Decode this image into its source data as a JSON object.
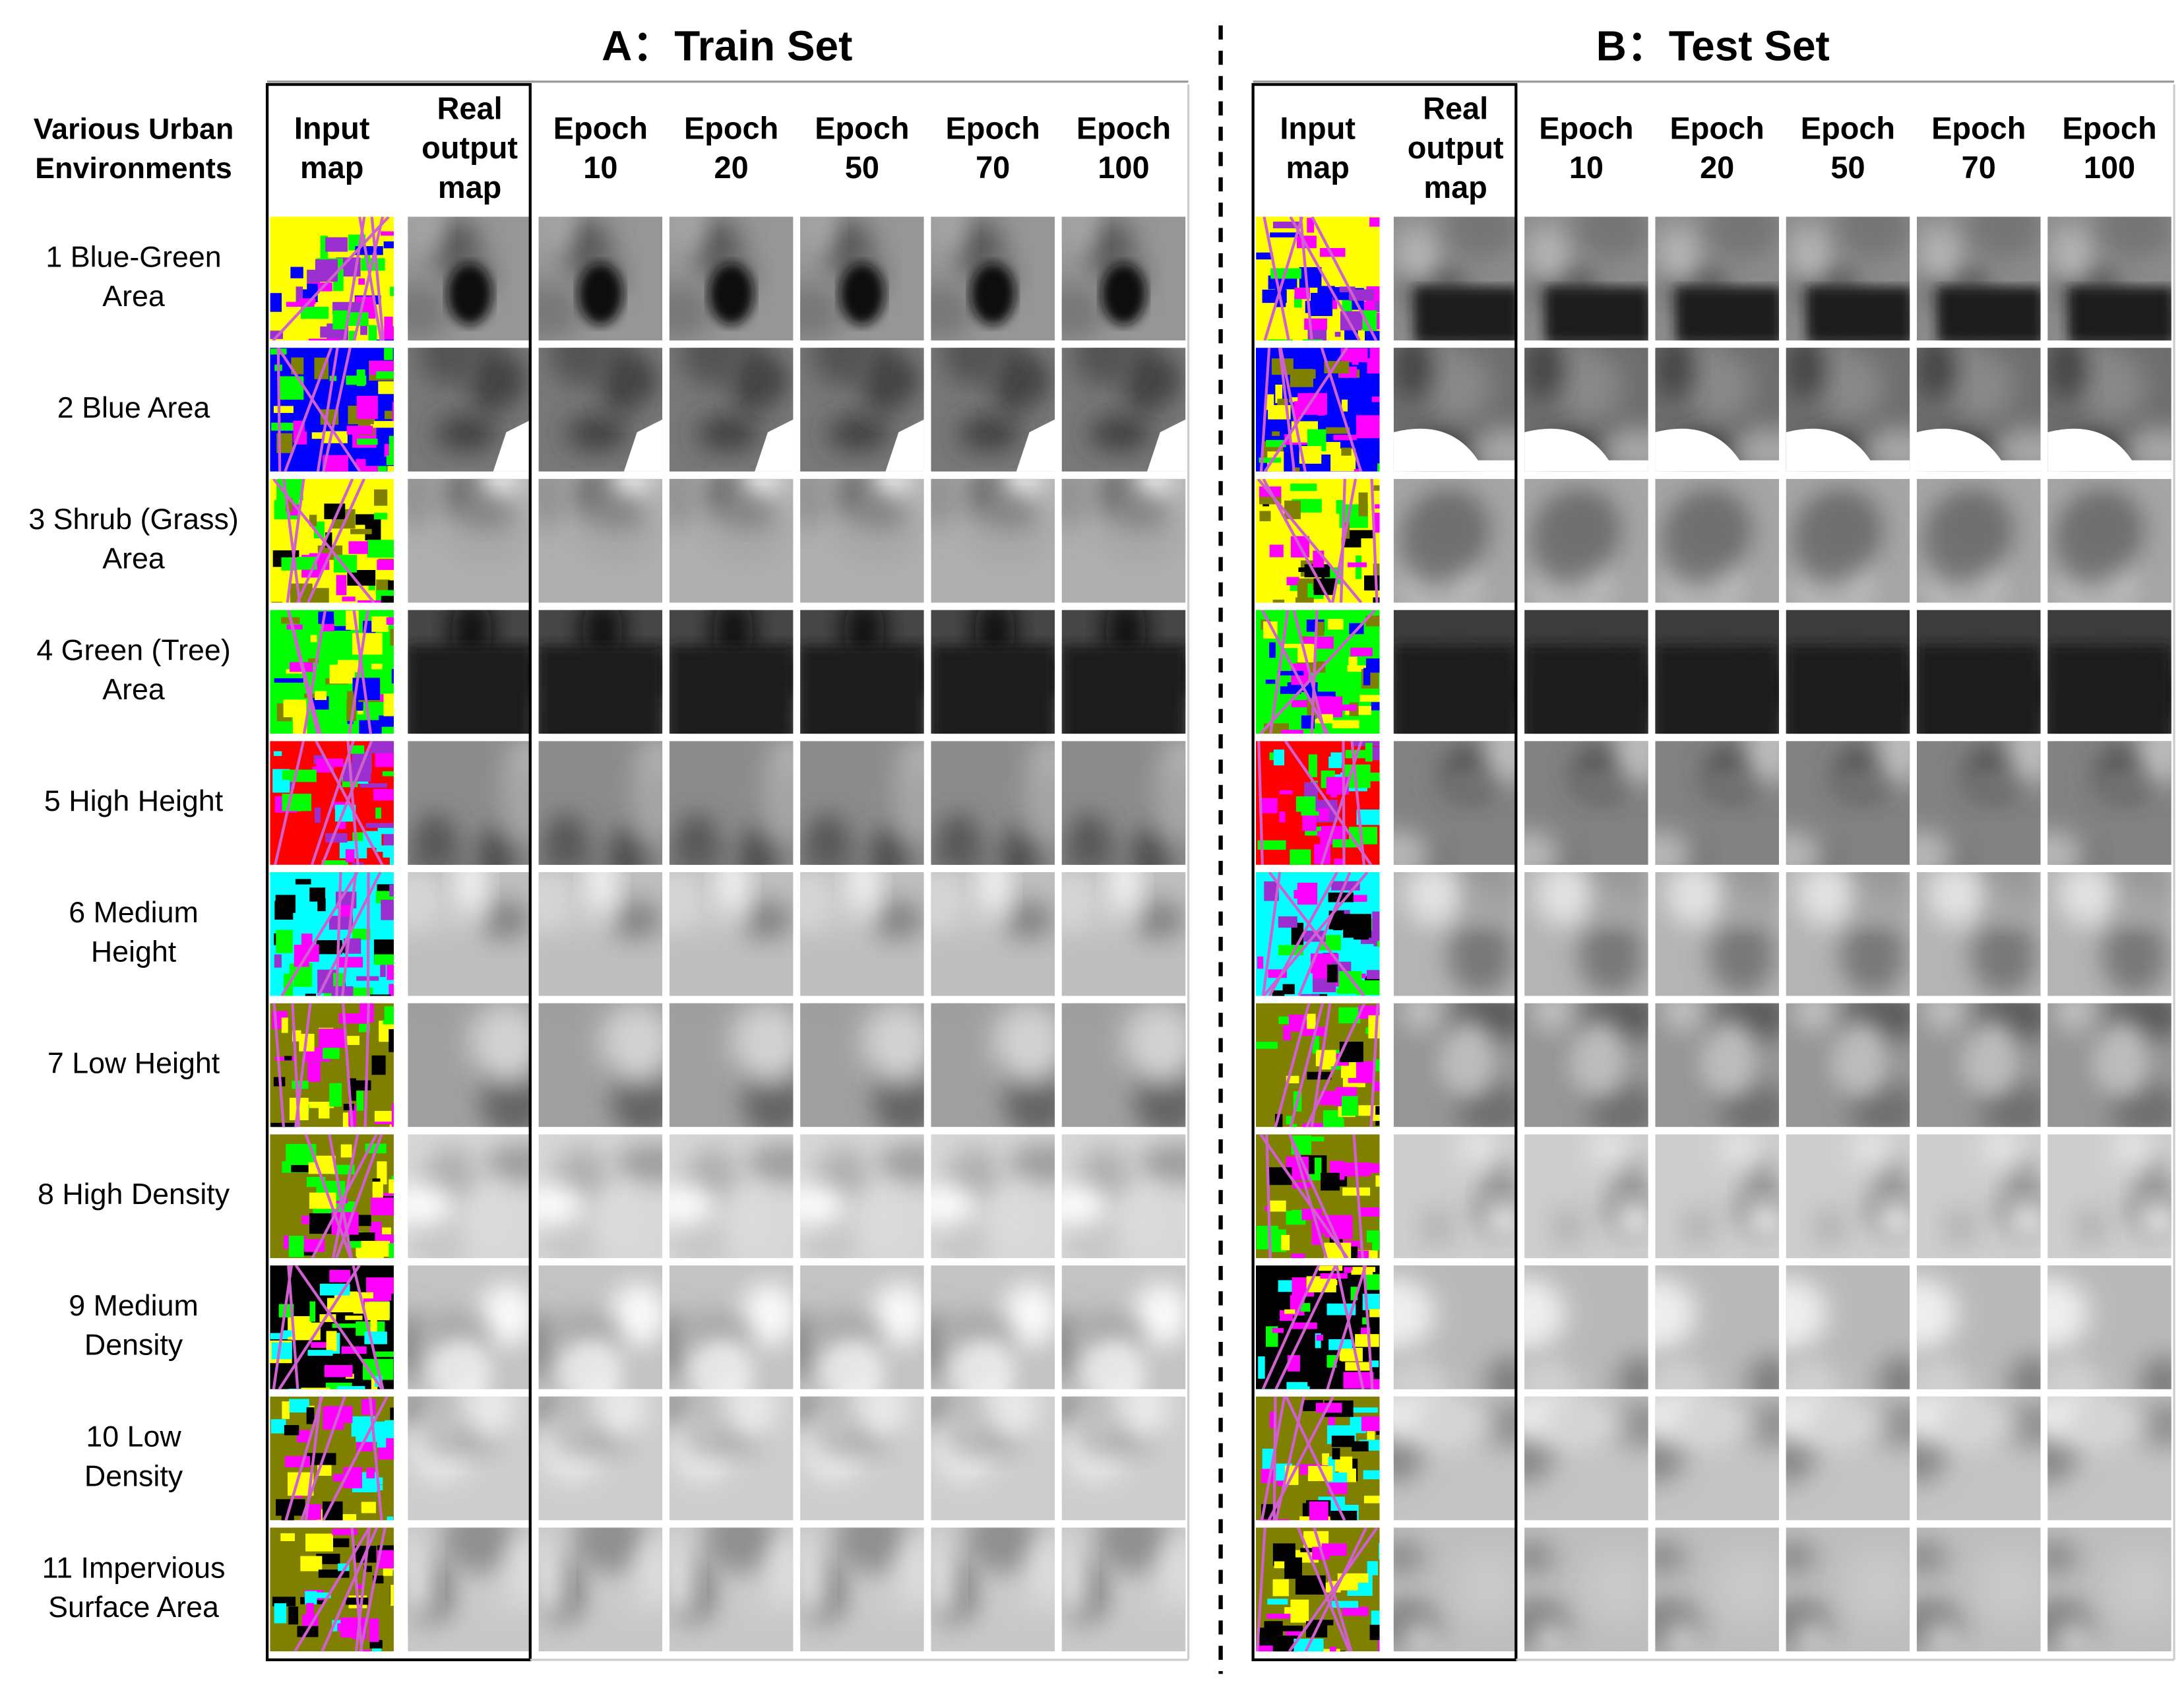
{
  "panels": [
    {
      "title": "A：Train Set",
      "columns": [
        [
          "Input",
          "map"
        ],
        [
          "Real",
          "output",
          "map"
        ],
        [
          "Epoch",
          "10"
        ],
        [
          "Epoch",
          "20"
        ],
        [
          "Epoch",
          "50"
        ],
        [
          "Epoch",
          "70"
        ],
        [
          "Epoch",
          "100"
        ]
      ]
    },
    {
      "title": "B：Test Set",
      "columns": [
        [
          "Input",
          "map"
        ],
        [
          "Real",
          "output",
          "map"
        ],
        [
          "Epoch",
          "10"
        ],
        [
          "Epoch",
          "20"
        ],
        [
          "Epoch",
          "50"
        ],
        [
          "Epoch",
          "70"
        ],
        [
          "Epoch",
          "100"
        ]
      ]
    }
  ],
  "row_header": [
    "Various Urban",
    "Environments"
  ],
  "rows": [
    [
      "1 Blue-Green",
      "Area"
    ],
    [
      "2 Blue Area"
    ],
    [
      "3 Shrub (Grass)",
      "Area"
    ],
    [
      "4 Green (Tree)",
      "Area"
    ],
    [
      "5 High Height"
    ],
    [
      "6 Medium",
      "Height"
    ],
    [
      "7 Low Height"
    ],
    [
      "8 High Density"
    ],
    [
      "9 Medium",
      "Density"
    ],
    [
      "10 Low",
      "Density"
    ],
    [
      "11 Impervious",
      "Surface Area"
    ]
  ]
}
